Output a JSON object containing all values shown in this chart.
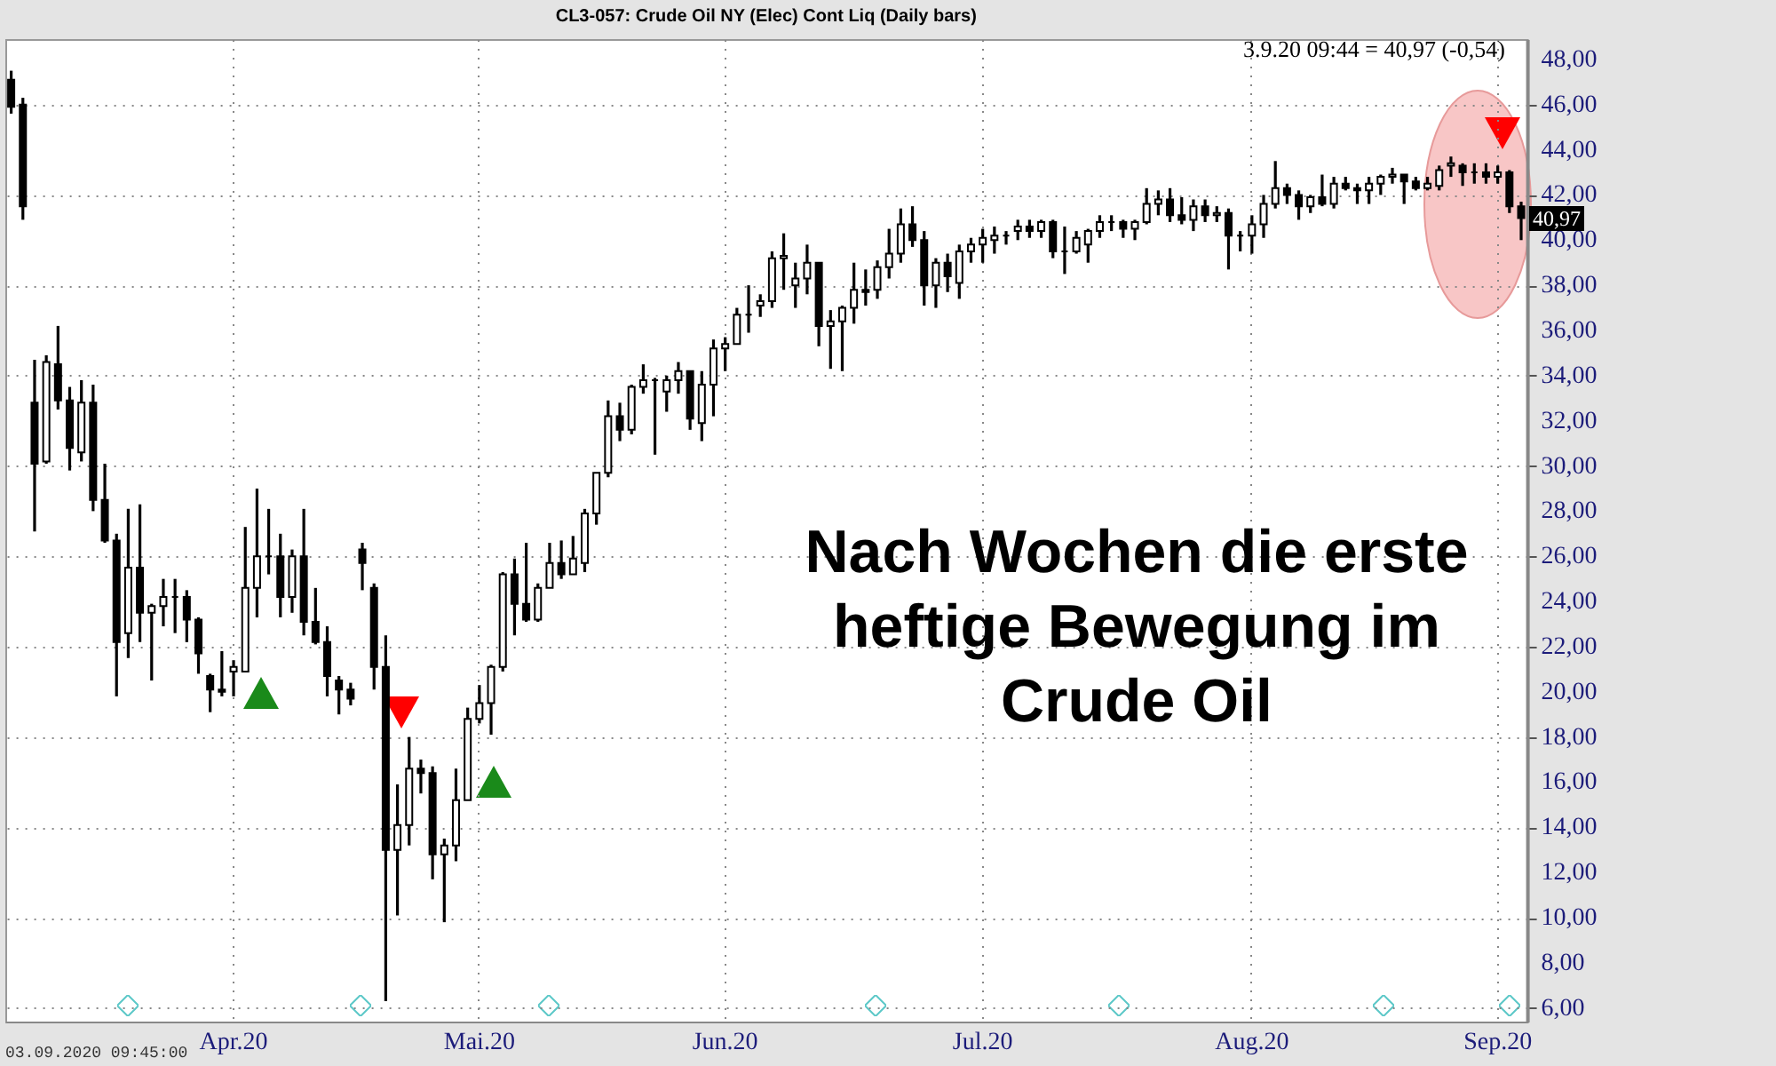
{
  "chart_data": {
    "type": "candlestick",
    "title": "CL3-057:  Crude Oil NY (Elec) Cont Liq  (Daily bars)",
    "categories": [
      null,
      null,
      null,
      null,
      null,
      null,
      null,
      null,
      null,
      null,
      null,
      null,
      null,
      null,
      null,
      null,
      null,
      null,
      null,
      "Apr.20",
      null,
      null,
      null,
      null,
      null,
      null,
      null,
      null,
      null,
      null,
      null,
      null,
      null,
      null,
      null,
      null,
      null,
      null,
      null,
      null,
      "Mai.20",
      null,
      null,
      null,
      null,
      null,
      null,
      null,
      null,
      null,
      null,
      null,
      null,
      null,
      null,
      null,
      null,
      null,
      null,
      null,
      null,
      "Jun.20",
      null,
      null,
      null,
      null,
      null,
      null,
      null,
      null,
      null,
      null,
      null,
      null,
      null,
      null,
      null,
      null,
      null,
      null,
      null,
      null,
      null,
      "Jul.20",
      null,
      null,
      null,
      null,
      null,
      null,
      null,
      null,
      null,
      null,
      null,
      null,
      null,
      null,
      null,
      null,
      null,
      null,
      null,
      null,
      null,
      null,
      "Aug.20",
      null,
      null,
      null,
      null,
      null,
      null,
      null,
      null,
      null,
      null,
      null,
      null,
      null,
      null,
      null,
      null,
      null,
      null,
      null,
      null,
      "Sep.20",
      null,
      null
    ],
    "ohlc": [
      [
        47.1,
        47.5,
        45.6,
        45.9
      ],
      [
        46.0,
        46.3,
        40.9,
        41.5
      ],
      [
        32.8,
        34.7,
        27.1,
        30.1
      ],
      [
        30.2,
        34.9,
        30.1,
        34.6
      ],
      [
        34.5,
        36.2,
        32.5,
        32.9
      ],
      [
        32.9,
        33.5,
        29.8,
        30.8
      ],
      [
        30.6,
        33.8,
        30.2,
        32.8
      ],
      [
        32.8,
        33.6,
        28.0,
        28.5
      ],
      [
        28.5,
        30.1,
        26.6,
        26.7
      ],
      [
        26.7,
        27.0,
        19.8,
        22.2
      ],
      [
        22.6,
        28.1,
        21.5,
        25.5
      ],
      [
        25.5,
        28.3,
        22.2,
        23.5
      ],
      [
        23.5,
        23.9,
        20.5,
        23.8
      ],
      [
        23.8,
        25.0,
        22.9,
        24.2
      ],
      [
        24.2,
        25.0,
        22.6,
        24.2
      ],
      [
        24.2,
        24.5,
        22.2,
        23.2
      ],
      [
        23.2,
        23.3,
        20.8,
        21.7
      ],
      [
        20.7,
        20.8,
        19.1,
        20.1
      ],
      [
        20.1,
        21.8,
        19.8,
        20.0
      ],
      [
        20.9,
        21.4,
        19.8,
        21.1
      ],
      [
        20.9,
        27.3,
        20.9,
        24.6
      ],
      [
        24.6,
        29.0,
        23.3,
        26.0
      ],
      [
        26.0,
        28.1,
        25.2,
        26.0
      ],
      [
        26.0,
        27.0,
        23.3,
        24.2
      ],
      [
        24.2,
        26.3,
        23.5,
        26.0
      ],
      [
        26.0,
        28.1,
        22.5,
        23.1
      ],
      [
        23.1,
        24.6,
        22.1,
        22.2
      ],
      [
        22.2,
        22.9,
        19.8,
        20.7
      ],
      [
        20.5,
        20.7,
        19.0,
        20.1
      ],
      [
        20.1,
        20.4,
        19.4,
        19.7
      ],
      [
        26.3,
        26.6,
        24.5,
        25.7
      ],
      [
        24.6,
        24.8,
        20.1,
        21.1
      ],
      [
        21.1,
        22.5,
        6.3,
        13.0
      ],
      [
        13.0,
        15.9,
        10.1,
        14.1
      ],
      [
        14.1,
        18.0,
        13.2,
        16.6
      ],
      [
        16.6,
        17.0,
        15.5,
        16.4
      ],
      [
        16.4,
        16.7,
        11.7,
        12.8
      ],
      [
        12.8,
        13.5,
        9.8,
        13.2
      ],
      [
        13.2,
        16.6,
        12.5,
        15.2
      ],
      [
        15.2,
        19.3,
        15.2,
        18.8
      ],
      [
        18.8,
        20.3,
        18.6,
        19.5
      ],
      [
        19.5,
        21.2,
        18.1,
        21.1
      ],
      [
        21.1,
        25.3,
        20.9,
        25.2
      ],
      [
        25.2,
        25.9,
        22.5,
        23.9
      ],
      [
        23.9,
        26.6,
        23.1,
        23.2
      ],
      [
        23.2,
        24.8,
        23.1,
        24.6
      ],
      [
        24.6,
        26.6,
        24.6,
        25.7
      ],
      [
        25.7,
        26.7,
        25.0,
        25.2
      ],
      [
        25.2,
        26.9,
        25.2,
        25.9
      ],
      [
        25.7,
        28.1,
        25.3,
        27.9
      ],
      [
        27.9,
        29.7,
        27.4,
        29.7
      ],
      [
        29.7,
        32.9,
        29.5,
        32.2
      ],
      [
        32.2,
        32.8,
        31.1,
        31.6
      ],
      [
        31.6,
        33.6,
        31.4,
        33.5
      ],
      [
        33.5,
        34.5,
        33.2,
        33.8
      ],
      [
        33.8,
        33.9,
        30.5,
        33.8
      ],
      [
        33.3,
        34.0,
        32.4,
        33.8
      ],
      [
        33.8,
        34.6,
        33.2,
        34.2
      ],
      [
        34.2,
        34.2,
        31.6,
        32.1
      ],
      [
        31.9,
        34.2,
        31.1,
        33.6
      ],
      [
        33.6,
        35.6,
        32.2,
        35.2
      ],
      [
        35.2,
        35.7,
        34.2,
        35.4
      ],
      [
        35.4,
        37.0,
        35.4,
        36.7
      ],
      [
        36.7,
        38.0,
        35.9,
        36.7
      ],
      [
        37.1,
        37.6,
        36.6,
        37.3
      ],
      [
        37.3,
        39.5,
        37.0,
        39.2
      ],
      [
        39.2,
        40.3,
        37.8,
        39.3
      ],
      [
        38.0,
        39.0,
        37.0,
        38.3
      ],
      [
        38.3,
        39.8,
        37.6,
        39.0
      ],
      [
        39.0,
        39.0,
        35.3,
        36.2
      ],
      [
        36.2,
        36.9,
        34.3,
        36.4
      ],
      [
        36.4,
        37.1,
        34.2,
        37.0
      ],
      [
        37.0,
        39.0,
        36.3,
        37.8
      ],
      [
        37.8,
        38.7,
        37.1,
        37.7
      ],
      [
        37.8,
        39.1,
        37.4,
        38.8
      ],
      [
        38.8,
        40.5,
        38.3,
        39.4
      ],
      [
        39.4,
        41.4,
        39.0,
        40.7
      ],
      [
        40.7,
        41.5,
        39.7,
        40.0
      ],
      [
        40.0,
        40.4,
        37.1,
        38.0
      ],
      [
        38.0,
        39.2,
        37.0,
        39.0
      ],
      [
        39.0,
        39.4,
        37.7,
        38.4
      ],
      [
        38.1,
        39.8,
        37.4,
        39.5
      ],
      [
        39.5,
        40.1,
        39.0,
        39.8
      ],
      [
        39.8,
        40.5,
        39.0,
        40.1
      ],
      [
        40.0,
        40.6,
        39.4,
        40.2
      ],
      [
        40.2,
        40.4,
        39.8,
        40.2
      ],
      [
        40.4,
        40.9,
        40.0,
        40.6
      ],
      [
        40.6,
        40.9,
        40.1,
        40.4
      ],
      [
        40.4,
        40.9,
        40.1,
        40.8
      ],
      [
        40.8,
        40.9,
        39.2,
        39.5
      ],
      [
        39.5,
        40.6,
        38.5,
        39.5
      ],
      [
        39.5,
        40.4,
        39.4,
        40.1
      ],
      [
        39.8,
        40.5,
        39.0,
        40.4
      ],
      [
        40.4,
        41.1,
        40.1,
        40.8
      ],
      [
        40.8,
        41.1,
        40.4,
        40.8
      ],
      [
        40.8,
        40.9,
        40.1,
        40.5
      ],
      [
        40.5,
        40.9,
        40.0,
        40.8
      ],
      [
        40.8,
        42.3,
        40.7,
        41.6
      ],
      [
        41.6,
        42.2,
        41.1,
        41.8
      ],
      [
        41.8,
        42.3,
        40.8,
        41.1
      ],
      [
        41.1,
        41.9,
        40.7,
        40.9
      ],
      [
        40.9,
        41.8,
        40.4,
        41.5
      ],
      [
        41.5,
        41.8,
        40.8,
        41.1
      ],
      [
        41.1,
        41.5,
        40.8,
        41.2
      ],
      [
        41.2,
        41.4,
        38.7,
        40.2
      ],
      [
        40.2,
        40.4,
        39.5,
        40.2
      ],
      [
        40.2,
        41.1,
        39.4,
        40.7
      ],
      [
        40.7,
        42.0,
        40.1,
        41.6
      ],
      [
        41.6,
        43.5,
        41.4,
        42.3
      ],
      [
        42.3,
        42.5,
        41.6,
        42.0
      ],
      [
        42.0,
        42.2,
        40.9,
        41.5
      ],
      [
        41.5,
        42.0,
        41.2,
        41.9
      ],
      [
        41.9,
        42.9,
        41.5,
        41.6
      ],
      [
        41.6,
        42.8,
        41.4,
        42.5
      ],
      [
        42.5,
        42.8,
        42.2,
        42.3
      ],
      [
        42.3,
        42.5,
        41.6,
        42.2
      ],
      [
        42.2,
        42.8,
        41.6,
        42.5
      ],
      [
        42.5,
        42.9,
        42.0,
        42.8
      ],
      [
        42.8,
        43.2,
        42.5,
        42.9
      ],
      [
        42.9,
        42.9,
        41.6,
        42.6
      ],
      [
        42.6,
        42.8,
        42.2,
        42.3
      ],
      [
        42.3,
        42.8,
        42.2,
        42.5
      ],
      [
        42.4,
        43.3,
        42.2,
        43.1
      ],
      [
        43.3,
        43.7,
        42.8,
        43.4
      ],
      [
        43.3,
        43.4,
        42.4,
        43.0
      ],
      [
        43.0,
        43.4,
        42.5,
        43.0
      ],
      [
        43.0,
        43.4,
        42.5,
        42.8
      ],
      [
        42.8,
        43.3,
        42.5,
        43.0
      ],
      [
        43.0,
        43.1,
        41.2,
        41.5
      ],
      [
        41.5,
        41.7,
        40.0,
        40.97
      ]
    ],
    "color": "#000000",
    "ylim": [
      5.4,
      48.9
    ],
    "yticks": [
      {
        "value": 6,
        "label": "6,00"
      },
      {
        "value": 8,
        "label": "8,00"
      },
      {
        "value": 10,
        "label": "10,00"
      },
      {
        "value": 12,
        "label": "12,00"
      },
      {
        "value": 14,
        "label": "14,00"
      },
      {
        "value": 16,
        "label": "16,00"
      },
      {
        "value": 18,
        "label": "18,00"
      },
      {
        "value": 20,
        "label": "20,00"
      },
      {
        "value": 22,
        "label": "22,00"
      },
      {
        "value": 24,
        "label": "24,00"
      },
      {
        "value": 26,
        "label": "26,00"
      },
      {
        "value": 28,
        "label": "28,00"
      },
      {
        "value": 30,
        "label": "30,00"
      },
      {
        "value": 32,
        "label": "32,00"
      },
      {
        "value": 34,
        "label": "34,00"
      },
      {
        "value": 36,
        "label": "36,00"
      },
      {
        "value": 38,
        "label": "38,00"
      },
      {
        "value": 40,
        "label": "40,00"
      },
      {
        "value": 42,
        "label": "42,00"
      },
      {
        "value": 44,
        "label": "44,00"
      },
      {
        "value": 46,
        "label": "46,00"
      },
      {
        "value": 48,
        "label": "48,00"
      }
    ],
    "grid": true,
    "annotations": [
      "Nach Wochen die erste\nheftige Bewegung im\nCrude Oil",
      "3.9.20 09:44 = 40,97 (-0,54)",
      "40,97",
      "03.09.2020 09:45:00"
    ]
  }
}
